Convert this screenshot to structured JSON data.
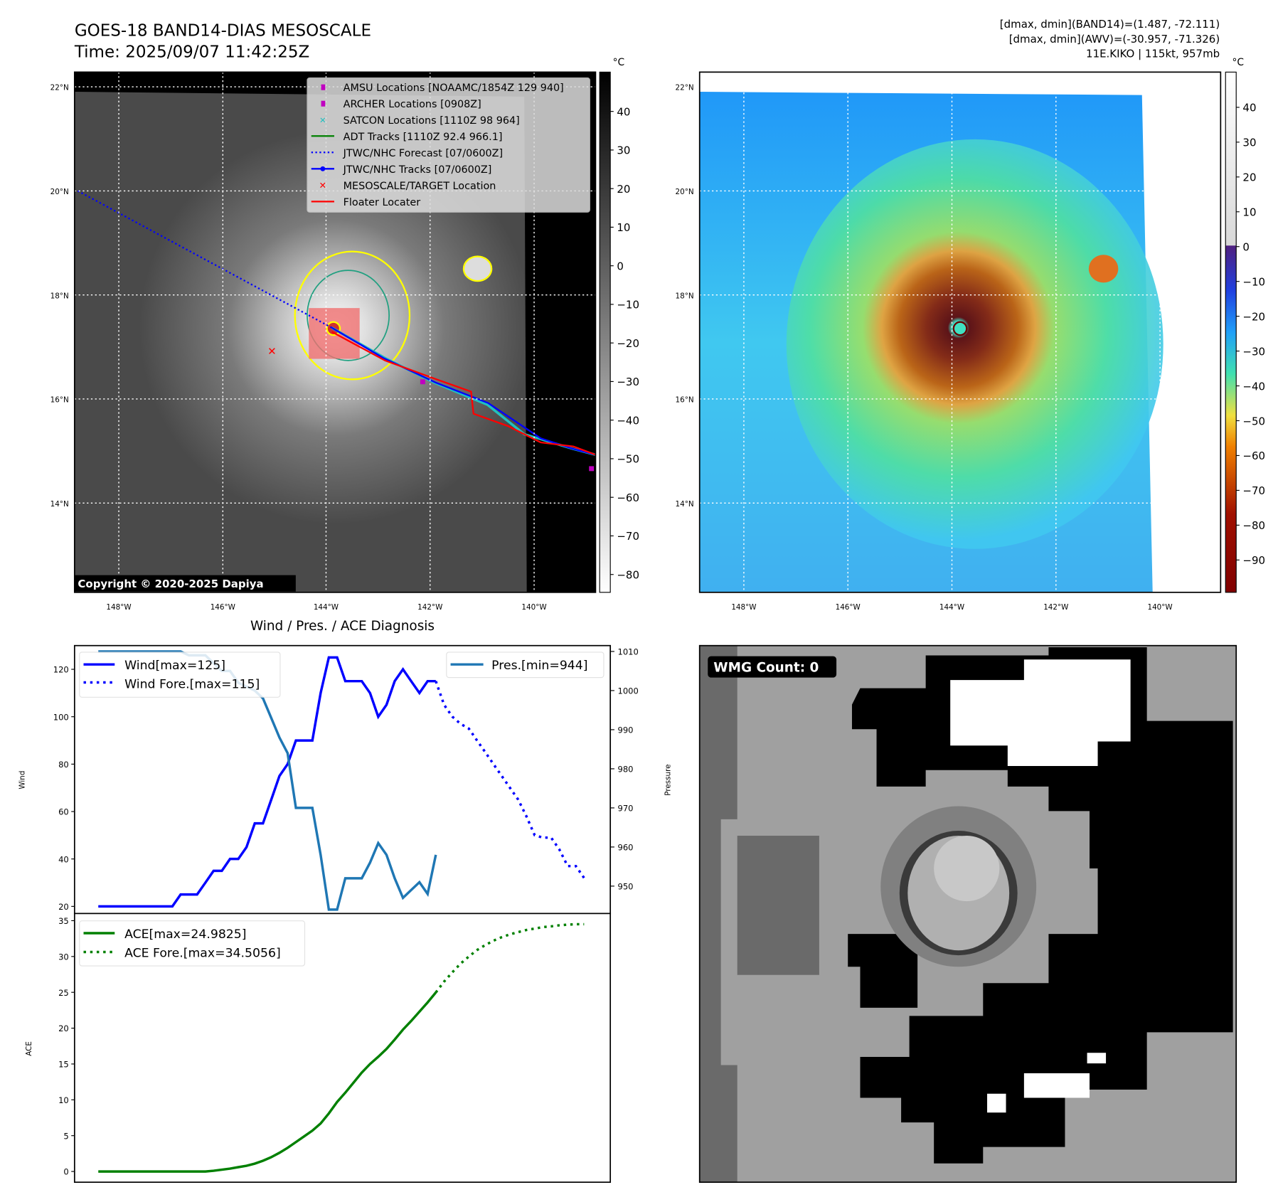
{
  "header": {
    "title": "GOES-18 BAND14-DIAS MESOSCALE",
    "time": "Time: 2025/09/07 11:42:25Z",
    "stats_line1": "[dmax, dmin](BAND14)=(1.487, -72.111)",
    "stats_line2": "[dmax, dmin](AWV)=(-30.957, -71.326)",
    "stats_line3": "11E.KIKO | 115kt, 957mb"
  },
  "map": {
    "unit": "°C",
    "lat_labels": [
      "22°N",
      "20°N",
      "18°N",
      "16°N",
      "14°N"
    ],
    "lon_labels": [
      "148°W",
      "146°W",
      "144°W",
      "142°W",
      "140°W"
    ],
    "copyright": "Copyright © 2020-2025 Dapiya",
    "legend": [
      {
        "label": "AMSU Locations [NOAAMC/1854Z 129 940]",
        "color": "#c000c0"
      },
      {
        "label": "ARCHER Locations [0908Z]",
        "color": "#c000c0"
      },
      {
        "label": "SATCON Locations [1110Z 98 964]",
        "color": "#20c0c0"
      },
      {
        "label": "ADT Tracks [1110Z 92.4 966.1]",
        "color": "#008000"
      },
      {
        "label": "JTWC/NHC Forecast [07/0600Z]",
        "color": "#0000ff"
      },
      {
        "label": "JTWC/NHC Tracks [07/0600Z]",
        "color": "#0000ff"
      },
      {
        "label": "MESOSCALE/TARGET Location",
        "color": "#ff0000"
      },
      {
        "label": "Floater Locater",
        "color": "#ff0000"
      }
    ],
    "cbar_left_ticks": [
      "40",
      "30",
      "20",
      "10",
      "0",
      "−10",
      "−20",
      "−30",
      "−40",
      "−50",
      "−60",
      "−70",
      "−80"
    ],
    "cbar_right_ticks": [
      "40",
      "30",
      "20",
      "10",
      "0",
      "−10",
      "−20",
      "−30",
      "−40",
      "−50",
      "−60",
      "−70",
      "−80",
      "−90"
    ]
  },
  "wmg": {
    "label": "WMG Count: 0"
  },
  "chart_data": [
    {
      "type": "line",
      "title": "Wind / Pres. / ACE Diagnosis",
      "ylabel": "Wind",
      "ylabel2": "Pressure",
      "ylim": [
        17,
        130
      ],
      "ylim2": [
        943,
        1011.5
      ],
      "yticks": [
        20,
        40,
        60,
        80,
        100,
        120
      ],
      "yticks2": [
        950,
        960,
        970,
        980,
        990,
        1000,
        1010
      ],
      "legend_left": [
        "Wind[max=125]",
        "Wind Fore.[max=115]"
      ],
      "legend_right": [
        "Pres.[min=944]"
      ],
      "series": [
        {
          "name": "Wind",
          "style": "solid",
          "color": "#0000ff",
          "x0": 0,
          "values": [
            20,
            20,
            20,
            20,
            20,
            20,
            20,
            20,
            20,
            20,
            25,
            25,
            25,
            30,
            35,
            35,
            40,
            40,
            45,
            55,
            55,
            65,
            75,
            80,
            90,
            90,
            90,
            110,
            125,
            125,
            115,
            115,
            115,
            110,
            100,
            105,
            115,
            120,
            115,
            110,
            115,
            115
          ]
        },
        {
          "name": "Wind Fore.",
          "style": "dotted",
          "color": "#0000ff",
          "x0": 41,
          "values": [
            115,
            105,
            100,
            97,
            95,
            90,
            85,
            80,
            75,
            70,
            65,
            58,
            50,
            49,
            49,
            44,
            37,
            37,
            32
          ]
        },
        {
          "name": "Pres.",
          "style": "solid",
          "color": "#1f77b4",
          "axis": "right",
          "x0": 0,
          "values": [
            1010,
            1010,
            1010,
            1010,
            1010,
            1010,
            1010,
            1010,
            1010,
            1010,
            1010,
            1009,
            1009,
            1009,
            1007,
            1005,
            1005,
            1002,
            1001,
            1000,
            998,
            993,
            988,
            984,
            970,
            970,
            970,
            958,
            944,
            944,
            952,
            952,
            952,
            956,
            961,
            958,
            952,
            947,
            949,
            951,
            948,
            958
          ]
        }
      ]
    },
    {
      "type": "line",
      "ylabel": "ACE",
      "ylim": [
        -1.5,
        36
      ],
      "yticks": [
        0,
        5,
        10,
        15,
        20,
        25,
        30,
        35
      ],
      "legend": [
        "ACE[max=24.9825]",
        "ACE Fore.[max=34.5056]"
      ],
      "series": [
        {
          "name": "ACE",
          "style": "solid",
          "color": "#008000",
          "x0": 0,
          "values": [
            0,
            0,
            0,
            0,
            0,
            0,
            0,
            0,
            0,
            0,
            0,
            0,
            0,
            0,
            0.1,
            0.25,
            0.4,
            0.6,
            0.8,
            1.1,
            1.5,
            2.0,
            2.6,
            3.3,
            4.1,
            4.9,
            5.7,
            6.7,
            8.1,
            9.7,
            11.0,
            12.4,
            13.8,
            15.0,
            16.0,
            17.1,
            18.4,
            19.8,
            21.0,
            22.3,
            23.6,
            24.98
          ]
        },
        {
          "name": "ACE Fore.",
          "style": "dotted",
          "color": "#008000",
          "x0": 41,
          "values": [
            24.98,
            26.5,
            27.8,
            29.0,
            30.0,
            30.9,
            31.6,
            32.2,
            32.7,
            33.1,
            33.4,
            33.7,
            33.9,
            34.1,
            34.2,
            34.35,
            34.45,
            34.5,
            34.5
          ]
        }
      ]
    }
  ]
}
